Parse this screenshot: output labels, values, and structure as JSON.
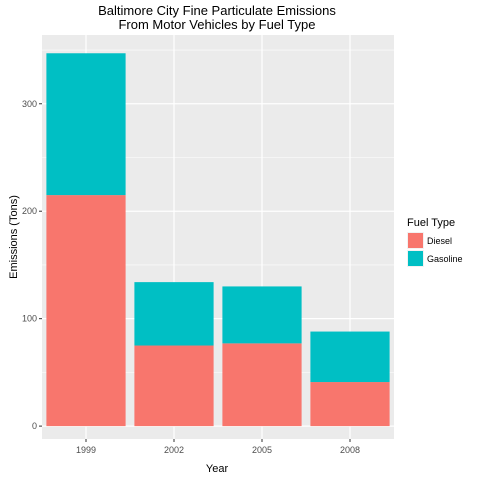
{
  "chart_data": {
    "type": "bar",
    "stacked": true,
    "title_line1": "Baltimore City Fine Particulate Emissions",
    "title_line2": "From Motor Vehicles by Fuel Type",
    "xlabel": "Year",
    "ylabel": "Emissions (Tons)",
    "categories": [
      "1999",
      "2002",
      "2005",
      "2008"
    ],
    "series": [
      {
        "name": "Diesel",
        "color": "#F8766D",
        "values": [
          215,
          75,
          77,
          41
        ]
      },
      {
        "name": "Gasoline",
        "color": "#00BFC4",
        "values": [
          132,
          59,
          53,
          47
        ]
      }
    ],
    "ylim": [
      -12,
      364
    ],
    "yticks": [
      0,
      100,
      200,
      300
    ],
    "legend_title": "Fuel Type",
    "legend_position": "right",
    "grid": true,
    "panel_color": "#EBEBEB"
  }
}
